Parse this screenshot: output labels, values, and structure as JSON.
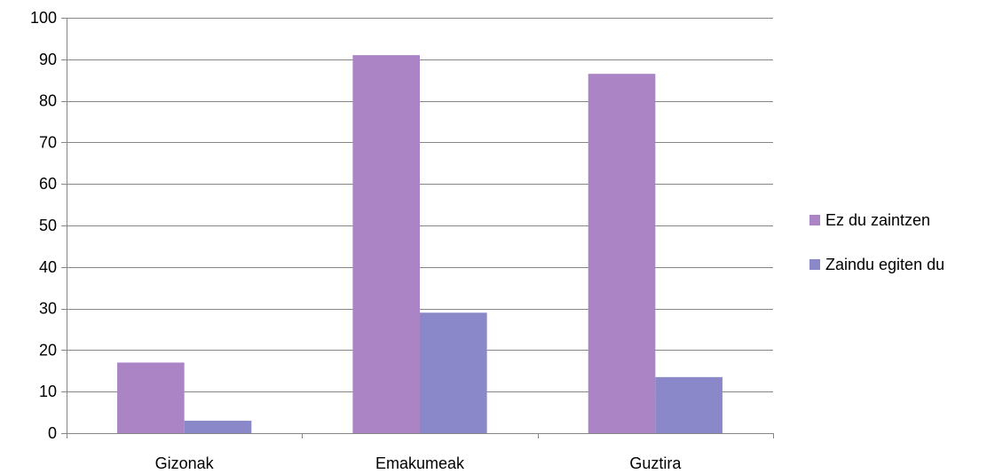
{
  "chart_data": {
    "type": "bar",
    "categories": [
      "Gizonak",
      "Emakumeak",
      "Guztira"
    ],
    "series": [
      {
        "name": "Ez du zaintzen",
        "values": [
          17,
          91,
          86.5
        ],
        "color": "#ab84c6"
      },
      {
        "name": "Zaindu egiten du",
        "values": [
          3,
          29,
          13.5
        ],
        "color": "#8a88c8"
      }
    ],
    "title": "",
    "xlabel": "",
    "ylabel": "",
    "ylim": [
      0,
      100
    ],
    "yticks": [
      0,
      10,
      20,
      30,
      40,
      50,
      60,
      70,
      80,
      90,
      100
    ],
    "grid": true,
    "legend_position": "right"
  },
  "legend": {
    "items": [
      {
        "label": "Ez du zaintzen",
        "color": "#ab84c6"
      },
      {
        "label": "Zaindu egiten du",
        "color": "#8a88c8"
      }
    ]
  }
}
